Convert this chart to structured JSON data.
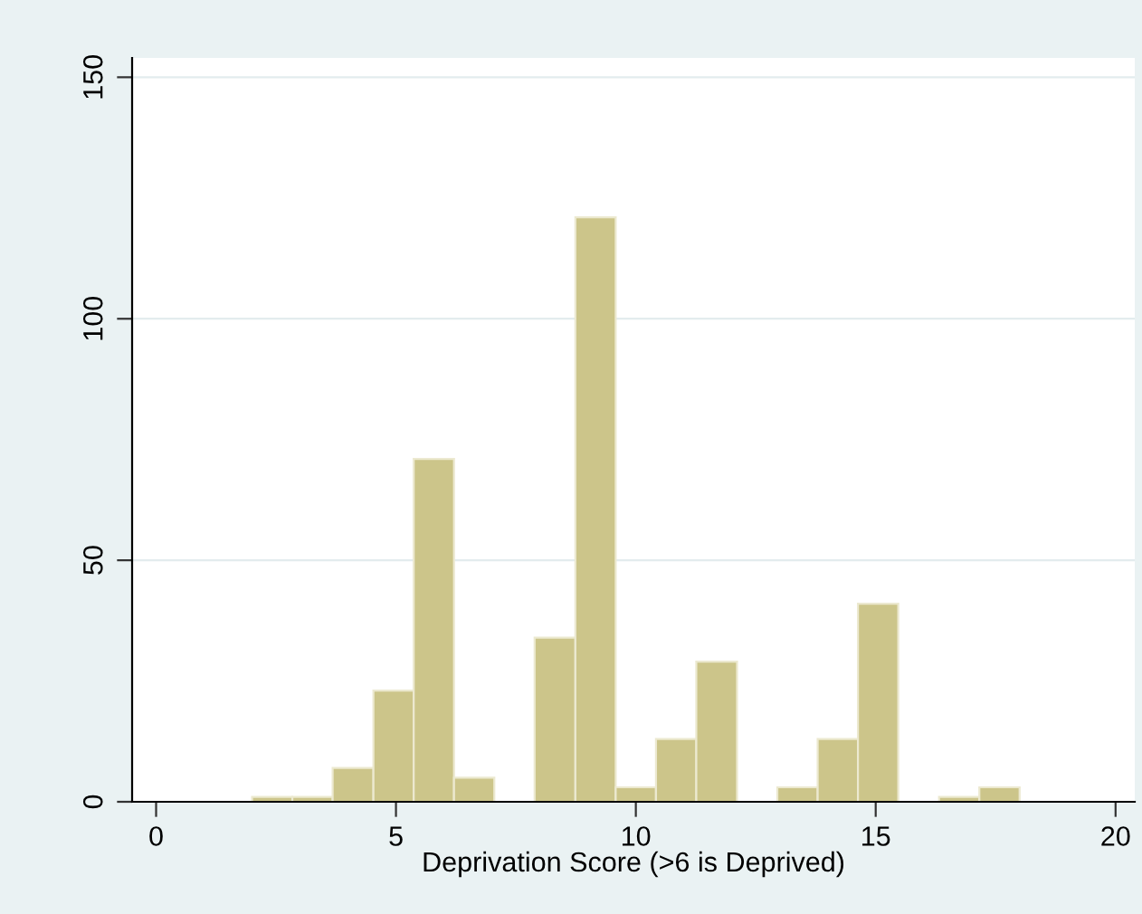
{
  "chart_data": {
    "type": "histogram",
    "xlabel": "Deprivation Score (>6 is Deprived)",
    "bins": [
      2,
      2.84,
      3.68,
      4.53,
      5.37,
      6.21,
      7.05,
      7.89,
      8.74,
      9.58,
      10.42,
      11.26,
      12.11,
      12.95,
      13.79,
      14.63,
      15.47,
      16.32,
      17.16,
      18
    ],
    "values": [
      1,
      1,
      7,
      23,
      71,
      5,
      0,
      34,
      121,
      3,
      13,
      29,
      0,
      3,
      13,
      41,
      0,
      1,
      3
    ],
    "color": "#ccc58a",
    "xlim": [
      -0.5,
      20.4
    ],
    "xticks": [
      0,
      5,
      10,
      15,
      20
    ],
    "ylim": [
      0,
      154
    ],
    "yticks": [
      0,
      50,
      100,
      150
    ],
    "grid": "y"
  }
}
